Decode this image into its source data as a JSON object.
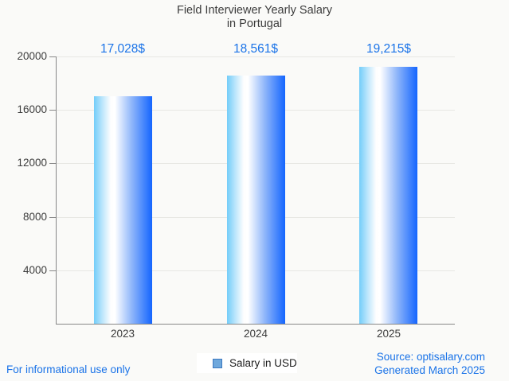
{
  "title": {
    "line1": "Field Interviewer Yearly Salary",
    "line2": "in Portugal"
  },
  "legend": {
    "label": "Salary in USD"
  },
  "footer": {
    "left_note": "For informational use only",
    "source": "Source: optisalary.com",
    "generated": "Generated March 2025"
  },
  "colors": {
    "background": "#fafaf8",
    "title_text": "#3c3c3c",
    "axis_line": "#878787",
    "gridline": "#e7e7e3",
    "axis_label_text": "#3d3d3d",
    "accent_blue_text": "#1a73e8",
    "bar_gradient_left": "#73cdf9",
    "bar_gradient_middle": "#ffffff",
    "bar_gradient_right": "#1465fe",
    "legend_swatch_fill": "#6fa8dc",
    "legend_swatch_border": "#3c78c0"
  },
  "chart_data": {
    "type": "bar",
    "title": "Field Interviewer Yearly Salary in Portugal",
    "categories": [
      "2023",
      "2024",
      "2025"
    ],
    "values": [
      17028,
      18561,
      19215
    ],
    "value_labels": [
      "17,028$",
      "18,561$",
      "19,215$"
    ],
    "series": [
      {
        "name": "Salary in USD",
        "values": [
          17028,
          18561,
          19215
        ]
      }
    ],
    "xlabel": "",
    "ylabel": "",
    "ylim": [
      0,
      20000
    ],
    "yticks": [
      4000,
      8000,
      12000,
      16000,
      20000
    ],
    "grid": "horizontal",
    "legend_position": "bottom",
    "bar_orientation": "vertical",
    "bar_fill": "horizontal gradient light-blue to white to blue"
  }
}
